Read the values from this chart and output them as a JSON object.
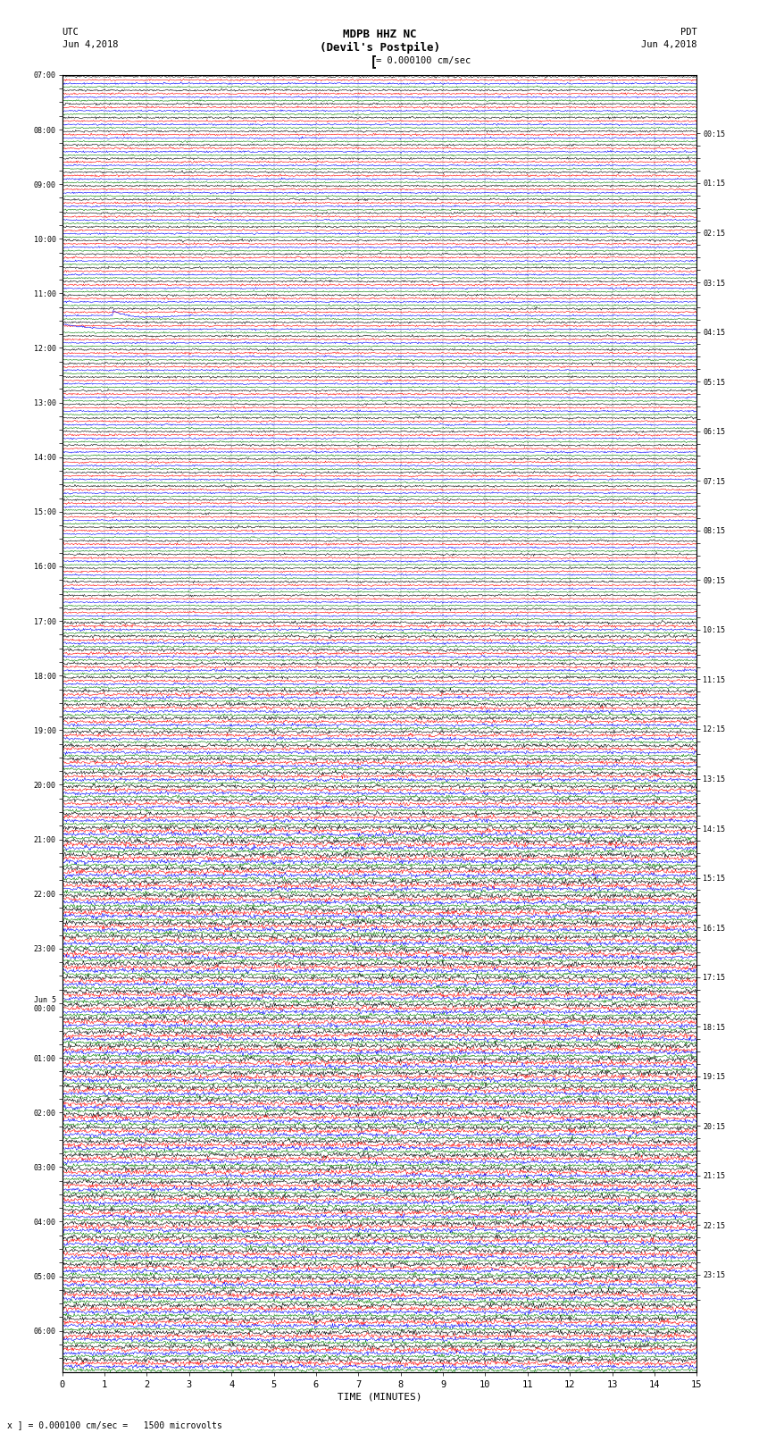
{
  "title_line1": "MDPB HHZ NC",
  "title_line2": "(Devil's Postpile)",
  "scale_label": "= 0.000100 cm/sec",
  "left_label_utc": "UTC",
  "left_label_date": "Jun 4,2018",
  "right_label_utc": "PDT",
  "right_label_date": "Jun 4,2018",
  "bottom_label": "x ] = 0.000100 cm/sec =   1500 microvolts",
  "xlabel": "TIME (MINUTES)",
  "utc_times": [
    "07:00",
    "",
    "",
    "",
    "08:00",
    "",
    "",
    "",
    "09:00",
    "",
    "",
    "",
    "10:00",
    "",
    "",
    "",
    "11:00",
    "",
    "",
    "",
    "12:00",
    "",
    "",
    "",
    "13:00",
    "",
    "",
    "",
    "14:00",
    "",
    "",
    "",
    "15:00",
    "",
    "",
    "",
    "16:00",
    "",
    "",
    "",
    "17:00",
    "",
    "",
    "",
    "18:00",
    "",
    "",
    "",
    "19:00",
    "",
    "",
    "",
    "20:00",
    "",
    "",
    "",
    "21:00",
    "",
    "",
    "",
    "22:00",
    "",
    "",
    "",
    "23:00",
    "",
    "",
    "",
    "Jun 5\n00:00",
    "",
    "",
    "",
    "01:00",
    "",
    "",
    "",
    "02:00",
    "",
    "",
    "",
    "03:00",
    "",
    "",
    "",
    "04:00",
    "",
    "",
    "",
    "05:00",
    "",
    "",
    "",
    "06:00",
    "",
    ""
  ],
  "pdt_times": [
    "00:15",
    "",
    "",
    "",
    "01:15",
    "",
    "",
    "",
    "02:15",
    "",
    "",
    "",
    "03:15",
    "",
    "",
    "",
    "04:15",
    "",
    "",
    "",
    "05:15",
    "",
    "",
    "",
    "06:15",
    "",
    "",
    "",
    "07:15",
    "",
    "",
    "",
    "08:15",
    "",
    "",
    "",
    "09:15",
    "",
    "",
    "",
    "10:15",
    "",
    "",
    "",
    "11:15",
    "",
    "",
    "",
    "12:15",
    "",
    "",
    "",
    "13:15",
    "",
    "",
    "",
    "14:15",
    "",
    "",
    "",
    "15:15",
    "",
    "",
    "",
    "16:15",
    "",
    "",
    "",
    "17:15",
    "",
    "",
    "",
    "18:15",
    "",
    "",
    "",
    "19:15",
    "",
    "",
    "",
    "20:15",
    "",
    "",
    "",
    "21:15",
    "",
    "",
    "",
    "22:15",
    "",
    "",
    "",
    "23:15",
    "",
    ""
  ],
  "n_rows": 95,
  "traces_per_row": 4,
  "colors": [
    "black",
    "red",
    "blue",
    "green"
  ],
  "background_color": "white",
  "fig_width": 8.5,
  "fig_height": 16.13,
  "dpi": 100,
  "n_minutes": 15,
  "n_pts": 900
}
